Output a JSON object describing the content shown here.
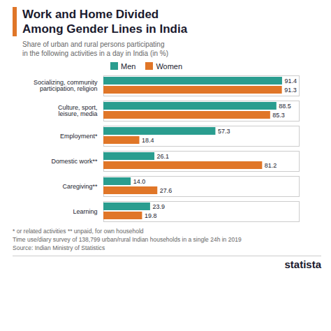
{
  "chart_data": {
    "type": "bar",
    "orientation": "horizontal",
    "title": "Work and Home Divided\nAmong Gender Lines in India",
    "subtitle": "Share of urban and rural persons participating\nin the following activities in a day in India (in %)",
    "categories": [
      "Socializing, community\nparticipation, religion",
      "Culture, sport,\nleisure, media",
      "Employment*",
      "Domestic work**",
      "Caregiving**",
      "Learning"
    ],
    "series": [
      {
        "name": "Men",
        "color": "#2a9d8f",
        "values": [
          91.4,
          88.5,
          57.3,
          26.1,
          14.0,
          23.9
        ],
        "value_labels": [
          "91.4",
          "88.5",
          "57.3",
          "26.1",
          "14.0",
          "23.9"
        ]
      },
      {
        "name": "Women",
        "color": "#e07628",
        "values": [
          91.3,
          85.3,
          18.4,
          81.2,
          27.6,
          19.8
        ]
      }
    ],
    "xlim": [
      0,
      100
    ],
    "xticks": [],
    "tick_labels": false,
    "data_labels": true,
    "grid": false,
    "legend": "top",
    "annotations": [
      "* or related activities    ** unpaid, for own household",
      "Time use/diary survey of 138,799 urban/rural Indian households in a single 24h in 2019",
      "Source: Indian Ministry of Statistics",
      "statista"
    ]
  }
}
